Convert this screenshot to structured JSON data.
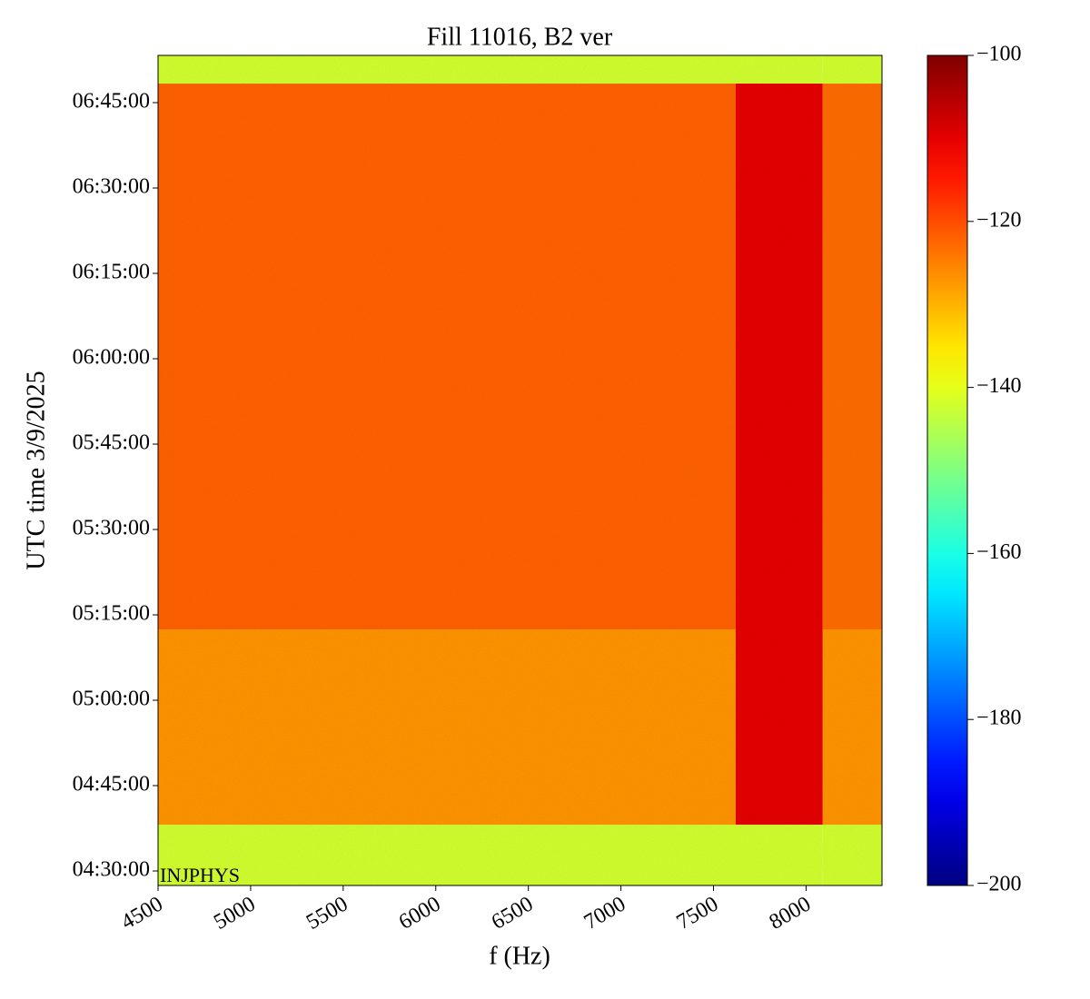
{
  "chart_data": {
    "type": "spectrogram",
    "title": "Fill 11016, B2 ver",
    "xlabel": "f (Hz)",
    "ylabel": "UTC time 3/9/2025",
    "annotation": "INJPHYS",
    "x_edges": [
      4500,
      7620,
      8090,
      8410
    ],
    "y_edges": [
      "04:27:27",
      "04:38:08",
      "05:12:27",
      "06:48:21",
      "06:53:18"
    ],
    "values": [
      [
        -142,
        -142,
        -142
      ],
      [
        -127,
        -110,
        -127
      ],
      [
        -122,
        -110,
        -123
      ],
      [
        -142,
        -142,
        -142
      ]
    ],
    "xlim": [
      4500,
      8410
    ],
    "xticks": [
      4500,
      5000,
      5500,
      6000,
      6500,
      7000,
      7500,
      8000
    ],
    "ylim": [
      "04:27:27",
      "06:53:18"
    ],
    "yticks": [
      "04:30:00",
      "04:45:00",
      "05:00:00",
      "05:15:00",
      "05:30:00",
      "05:45:00",
      "06:00:00",
      "06:15:00",
      "06:30:00",
      "06:45:00"
    ],
    "colormap": "jet",
    "clim": [
      -200,
      -100
    ],
    "cticks": [
      {
        "value": -100,
        "label": "−100"
      },
      {
        "value": -120,
        "label": "−120"
      },
      {
        "value": -140,
        "label": "−140"
      },
      {
        "value": -160,
        "label": "−160"
      },
      {
        "value": -180,
        "label": "−180"
      },
      {
        "value": -200,
        "label": "−200"
      }
    ]
  }
}
